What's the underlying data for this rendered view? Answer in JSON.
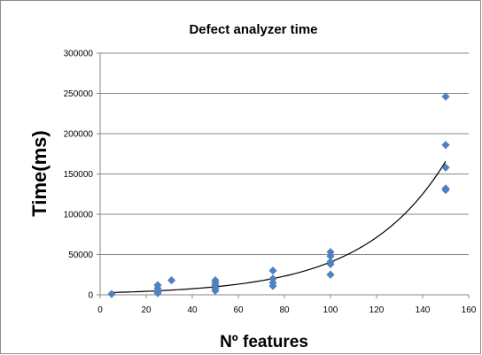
{
  "chart_data": {
    "type": "scatter",
    "title": "Defect analyzer time",
    "xlabel": "Nº features",
    "ylabel": "Time(ms)",
    "xlim": [
      0,
      160
    ],
    "ylim": [
      0,
      300000
    ],
    "x_ticks": [
      0,
      20,
      40,
      60,
      80,
      100,
      120,
      140,
      160
    ],
    "y_ticks": [
      0,
      50000,
      100000,
      150000,
      200000,
      250000,
      300000
    ],
    "grid": "horizontal",
    "legend": "none",
    "marker_color": "#4F81BD",
    "trendline": {
      "type": "exponential",
      "x_range": [
        5,
        150
      ],
      "color": "#000000"
    },
    "series": [
      {
        "points": [
          {
            "x": 5,
            "y": 1000
          },
          {
            "x": 25,
            "y": 2000
          },
          {
            "x": 25,
            "y": 4000
          },
          {
            "x": 25,
            "y": 8000
          },
          {
            "x": 25,
            "y": 12000
          },
          {
            "x": 31,
            "y": 18000
          },
          {
            "x": 50,
            "y": 5000
          },
          {
            "x": 50,
            "y": 8000
          },
          {
            "x": 50,
            "y": 12000
          },
          {
            "x": 50,
            "y": 15000
          },
          {
            "x": 50,
            "y": 18000
          },
          {
            "x": 75,
            "y": 11000
          },
          {
            "x": 75,
            "y": 15000
          },
          {
            "x": 75,
            "y": 20000
          },
          {
            "x": 75,
            "y": 30000
          },
          {
            "x": 100,
            "y": 25000
          },
          {
            "x": 100,
            "y": 38000
          },
          {
            "x": 100,
            "y": 41000
          },
          {
            "x": 100,
            "y": 48000
          },
          {
            "x": 100,
            "y": 53000
          },
          {
            "x": 150,
            "y": 130000
          },
          {
            "x": 150,
            "y": 132000
          },
          {
            "x": 150,
            "y": 158000
          },
          {
            "x": 150,
            "y": 186000
          },
          {
            "x": 150,
            "y": 246000
          }
        ]
      }
    ]
  }
}
